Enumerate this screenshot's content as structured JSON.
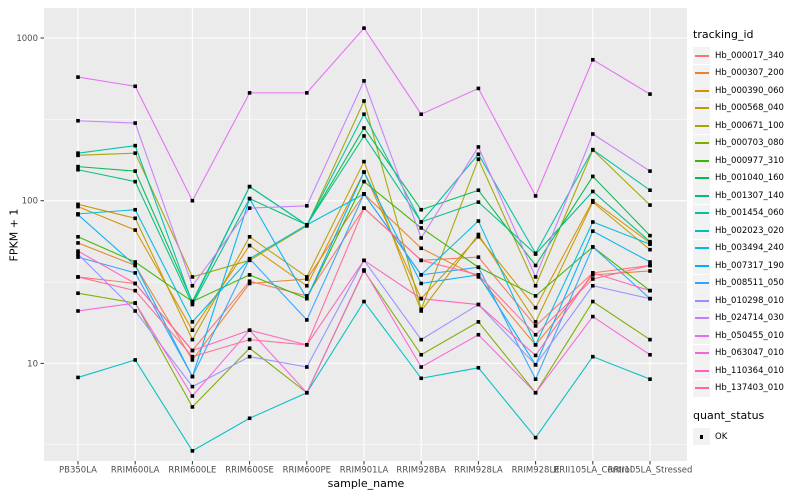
{
  "figure": {
    "background": "#FFFFFF",
    "panel_background": "#EBEBEB",
    "gridline_color": "#FFFFFF",
    "tick_mark_color": "#333333",
    "tick_label_color": "#4D4D4D",
    "axis_title_color": "#000000",
    "point_color": "#000000",
    "point_shape": "filled-square"
  },
  "chart_data": {
    "type": "line",
    "title": "",
    "xlabel": "sample_name",
    "ylabel": "FPKM + 1",
    "y_scale": "log10",
    "y_ticks": [
      10,
      100,
      1000
    ],
    "y_tick_labels": [
      "10",
      "100",
      "1000"
    ],
    "y_minor_ticks": [
      3.162,
      31.62,
      316.2
    ],
    "ylim": [
      2.5,
      1530
    ],
    "grid": true,
    "legend_position": "right",
    "categories": [
      "PB350LA",
      "RRIM600LA",
      "RRIM600LE",
      "RRIM600SE",
      "RRIM600PE",
      "RRIM901LA",
      "RRIM928BA",
      "RRIM928LA",
      "RRIM928LE",
      "RRII105LA_Control",
      "RRII105LA_Stressed"
    ],
    "series": [
      {
        "name": "Hb_000017_340",
        "color": "#F8766D",
        "values": [
          34,
          31,
          12,
          32,
          26,
          90,
          43,
          45,
          17,
          36,
          40
        ]
      },
      {
        "name": "Hb_000307_200",
        "color": "#EA8331",
        "values": [
          55,
          40,
          10.5,
          31,
          33,
          110,
          51,
          34,
          13,
          35,
          37
        ]
      },
      {
        "name": "Hb_000390_060",
        "color": "#D89000",
        "values": [
          92,
          66,
          16,
          53,
          30,
          150,
          25,
          60,
          22,
          100,
          55
        ]
      },
      {
        "name": "Hb_000568_040",
        "color": "#C09B00",
        "values": [
          95,
          78,
          14,
          60,
          34,
          174,
          21,
          62,
          18,
          98,
          50
        ]
      },
      {
        "name": "Hb_000671_100",
        "color": "#A3A500",
        "values": [
          190,
          196,
          34,
          43,
          70,
          410,
          21.5,
          180,
          30,
          205,
          94
        ]
      },
      {
        "name": "Hb_000703_080",
        "color": "#7CAE00",
        "values": [
          27,
          23.5,
          5.4,
          12.4,
          6.6,
          37,
          11.3,
          18,
          6.6,
          24,
          14
        ]
      },
      {
        "name": "Hb_000977_310",
        "color": "#39B600",
        "values": [
          60,
          42,
          24,
          35,
          25,
          131,
          68,
          39,
          26,
          52,
          28
        ]
      },
      {
        "name": "Hb_001040_160",
        "color": "#00BB4E",
        "values": [
          162,
          152,
          24,
          122,
          71,
          280,
          88,
          116,
          40,
          141,
          61
        ]
      },
      {
        "name": "Hb_001307_140",
        "color": "#00BF7D",
        "values": [
          155,
          131,
          23,
          103,
          71,
          250,
          74,
          98,
          47,
          114,
          56
        ]
      },
      {
        "name": "Hb_001454_060",
        "color": "#00C1A3",
        "values": [
          196,
          218,
          23.5,
          122,
          71,
          340,
          74,
          193,
          47.5,
          206,
          116
        ]
      },
      {
        "name": "Hb_002023_020",
        "color": "#00BFC4",
        "values": [
          8.2,
          10.5,
          2.9,
          4.6,
          6.6,
          24,
          8.1,
          9.4,
          3.5,
          11,
          8
        ]
      },
      {
        "name": "Hb_003494_240",
        "color": "#00BAE0",
        "values": [
          83,
          88,
          18,
          44,
          71,
          110,
          35,
          75,
          13,
          74,
          54
        ]
      },
      {
        "name": "Hb_007317_190",
        "color": "#00B0F6",
        "values": [
          82,
          40,
          8.3,
          103,
          25,
          150,
          31,
          35,
          9.8,
          65,
          42
        ]
      },
      {
        "name": "Hb_008511_050",
        "color": "#35A2FF",
        "values": [
          45,
          36,
          8.3,
          44,
          18.5,
          110,
          35,
          39,
          8,
          52,
          25
        ]
      },
      {
        "name": "Hb_010298_010",
        "color": "#9590FF",
        "values": [
          47,
          21,
          7.2,
          11,
          9.5,
          43,
          14,
          23,
          9.8,
          30,
          25
        ]
      },
      {
        "name": "Hb_024714_030",
        "color": "#C77CFF",
        "values": [
          310,
          300,
          30,
          90,
          93,
          545,
          59,
          214,
          34,
          257,
          152
        ]
      },
      {
        "name": "Hb_050455_010",
        "color": "#E76BF3",
        "values": [
          575,
          505,
          100,
          460,
          460,
          1150,
          340,
          490,
          107,
          735,
          452
        ]
      },
      {
        "name": "Hb_063047_010",
        "color": "#FA62DB",
        "values": [
          21,
          23.5,
          6.3,
          16,
          6.6,
          37.5,
          9.5,
          15,
          6.6,
          19.4,
          11.3
        ]
      },
      {
        "name": "Hb_110364_010",
        "color": "#FF62BC",
        "values": [
          49,
          31,
          12,
          16,
          13,
          43,
          25,
          23,
          11.2,
          36,
          28
        ]
      },
      {
        "name": "Hb_137403_010",
        "color": "#FF6A98",
        "values": [
          34,
          28,
          11,
          14,
          13,
          90,
          43,
          35,
          15,
          33,
          40
        ]
      }
    ]
  },
  "legend": {
    "tracking_title": "tracking_id",
    "quant_title": "quant_status",
    "quant_items": [
      {
        "label": "OK",
        "marker": "black-square"
      }
    ]
  }
}
